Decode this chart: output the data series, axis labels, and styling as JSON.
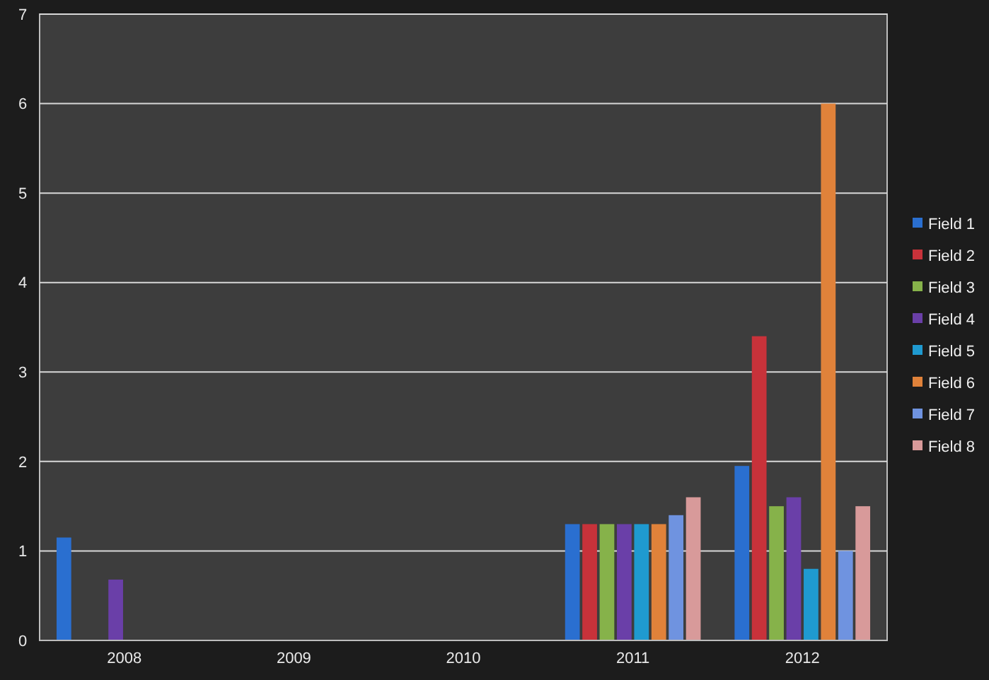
{
  "chart_data": {
    "type": "bar",
    "categories": [
      "2008",
      "2009",
      "2010",
      "2011",
      "2012"
    ],
    "series": [
      {
        "name": "Field 1",
        "color": "#2a6fd0",
        "values": [
          1.15,
          null,
          null,
          1.3,
          1.95
        ]
      },
      {
        "name": "Field 2",
        "color": "#c8323a",
        "values": [
          null,
          null,
          null,
          1.3,
          3.4
        ]
      },
      {
        "name": "Field 3",
        "color": "#86b24a",
        "values": [
          null,
          null,
          null,
          1.3,
          1.5
        ]
      },
      {
        "name": "Field 4",
        "color": "#6a3fa8",
        "values": [
          0.68,
          null,
          null,
          1.3,
          1.6
        ]
      },
      {
        "name": "Field 5",
        "color": "#1f9ad0",
        "values": [
          null,
          null,
          null,
          1.3,
          0.8
        ]
      },
      {
        "name": "Field 6",
        "color": "#e0823a",
        "values": [
          null,
          null,
          null,
          1.3,
          6
        ]
      },
      {
        "name": "Field 7",
        "color": "#6f93e0",
        "values": [
          null,
          null,
          null,
          1.4,
          1
        ]
      },
      {
        "name": "Field 8",
        "color": "#d89a9a",
        "values": [
          null,
          null,
          null,
          1.6,
          1.5
        ]
      }
    ],
    "ylim": [
      0,
      7
    ],
    "yticks": [
      0,
      1,
      2,
      3,
      4,
      5,
      6,
      7
    ],
    "grid": "y",
    "legend": "right"
  }
}
